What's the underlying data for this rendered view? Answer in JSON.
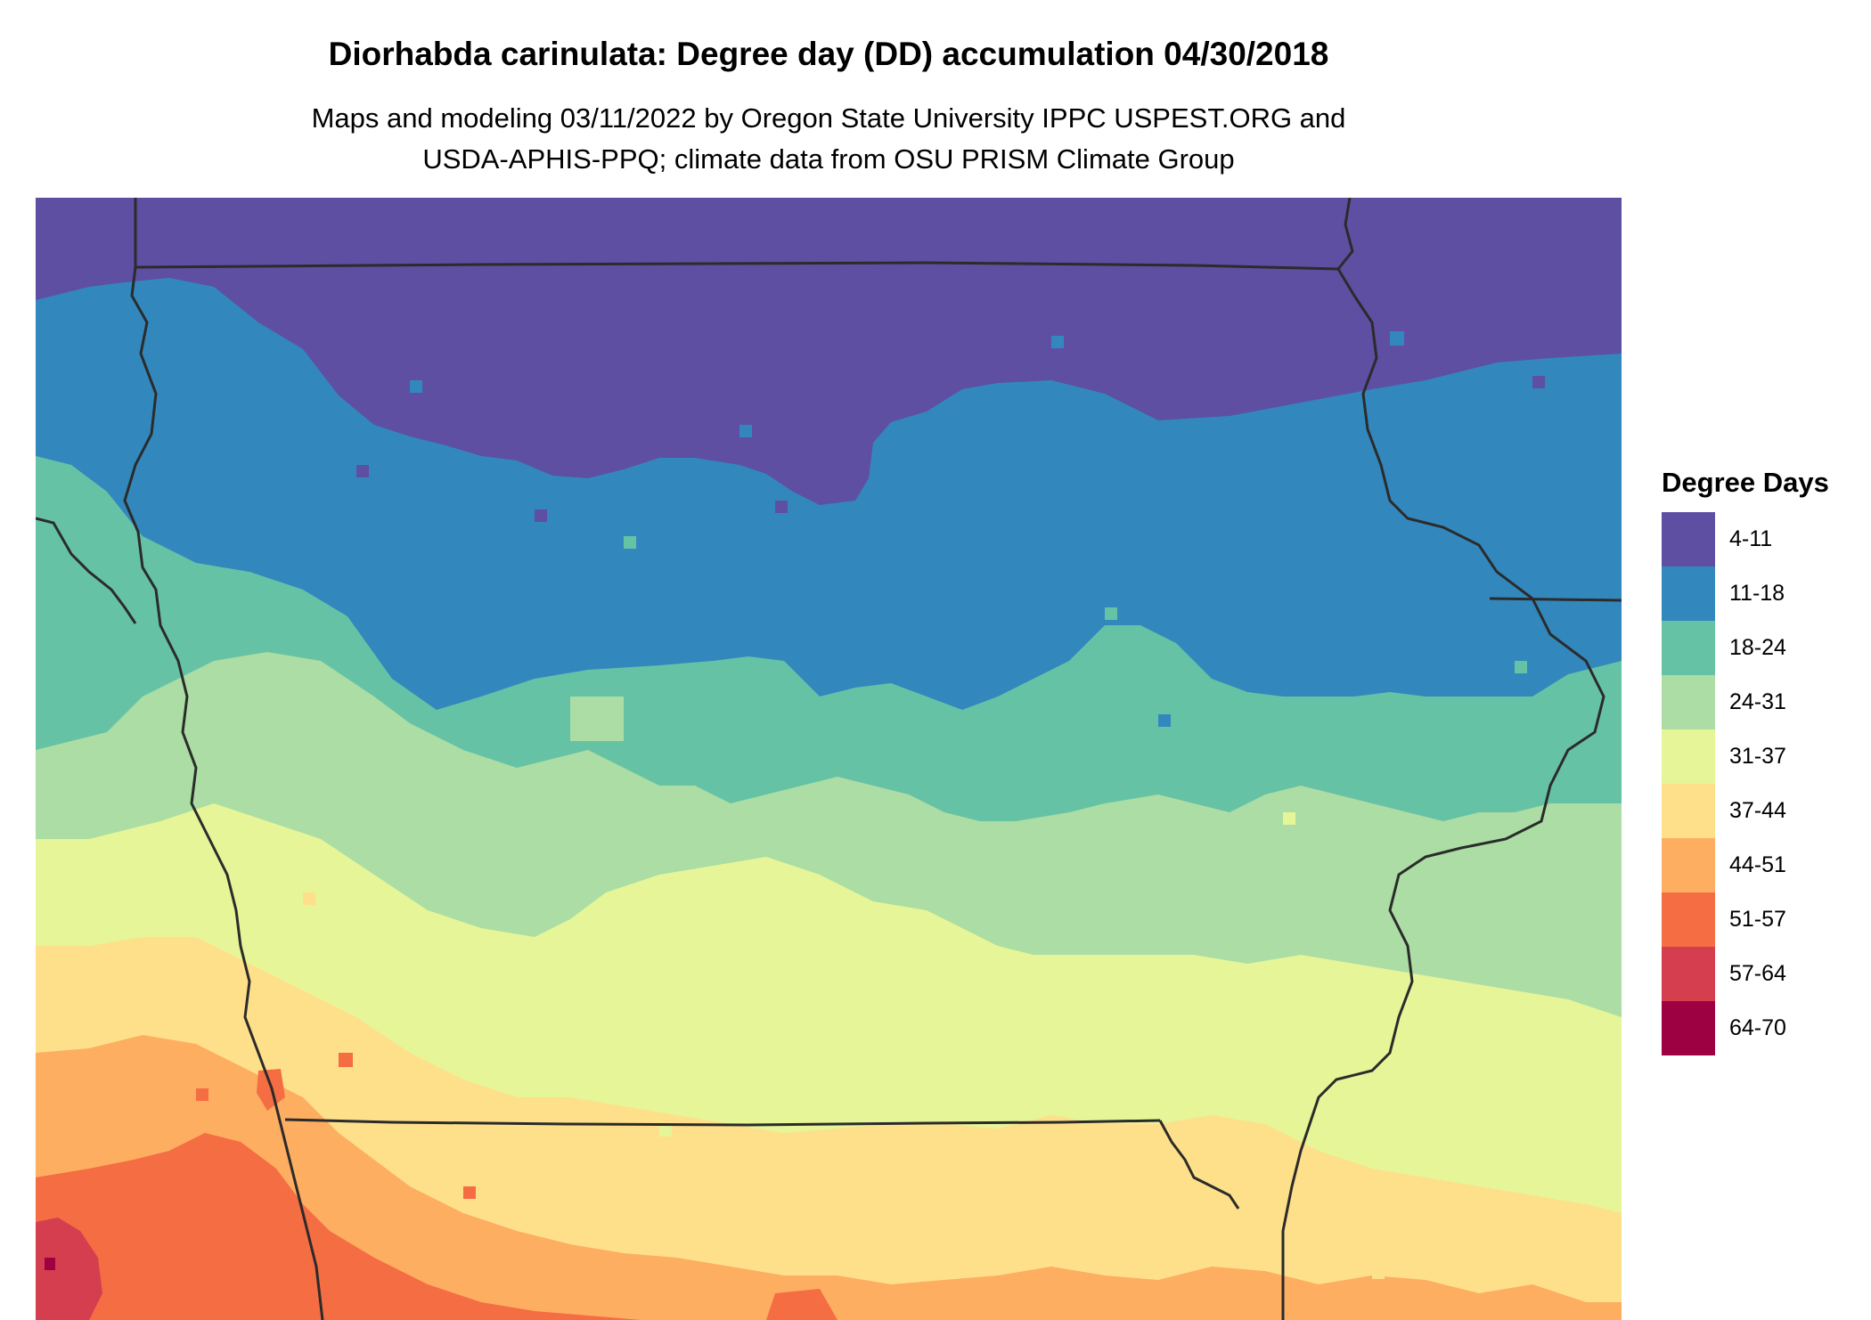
{
  "title": "Diorhabda carinulata: Degree day (DD) accumulation 04/30/2018",
  "subtitle_line1": "Maps and modeling 03/11/2022 by Oregon State University IPPC USPEST.ORG and",
  "subtitle_line2": "USDA-APHIS-PPQ; climate data from OSU PRISM Climate Group",
  "legend": {
    "title": "Degree Days",
    "items": [
      {
        "label": "4-11",
        "color": "#5e4fa2"
      },
      {
        "label": "11-18",
        "color": "#3288bd"
      },
      {
        "label": "18-24",
        "color": "#66c2a5"
      },
      {
        "label": "24-31",
        "color": "#abdda4"
      },
      {
        "label": "31-37",
        "color": "#e6f598"
      },
      {
        "label": "37-44",
        "color": "#fee08b"
      },
      {
        "label": "44-51",
        "color": "#fdae61"
      },
      {
        "label": "51-57",
        "color": "#f46d43"
      },
      {
        "label": "57-64",
        "color": "#d53e4f"
      },
      {
        "label": "64-70",
        "color": "#9e0142"
      }
    ]
  },
  "map": {
    "region": "Iowa and surrounding states",
    "band_colors_north_to_south": [
      "#5e4fa2",
      "#3288bd",
      "#66c2a5",
      "#abdda4",
      "#e6f598",
      "#fee08b",
      "#fdae61",
      "#f46d43",
      "#d53e4f",
      "#9e0142"
    ]
  }
}
